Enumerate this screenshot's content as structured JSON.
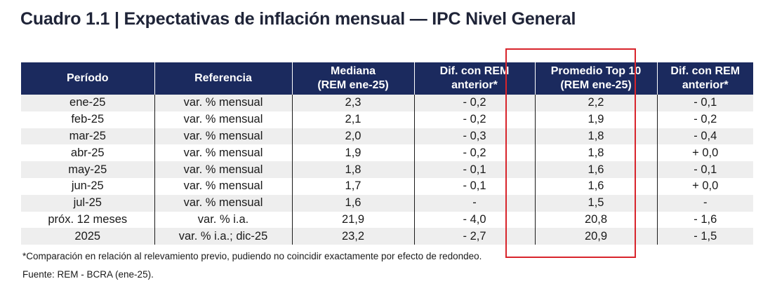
{
  "title": "Cuadro 1.1 | Expectativas de inflación mensual — IPC Nivel General",
  "headers": [
    {
      "line1": "Período",
      "line2": ""
    },
    {
      "line1": "Referencia",
      "line2": ""
    },
    {
      "line1": "Mediana",
      "line2": "(REM ene-25)"
    },
    {
      "line1": "Dif. con REM",
      "line2": "anterior*"
    },
    {
      "line1": "Promedio Top 10",
      "line2": "(REM ene-25)"
    },
    {
      "line1": "Dif. con REM",
      "line2": "anterior*"
    }
  ],
  "rows": [
    {
      "periodo": "ene-25",
      "referencia": "var. % mensual",
      "mediana": "2,3",
      "dif_mediana": "- 0,2",
      "top10": "2,2",
      "dif_top10": "- 0,1"
    },
    {
      "periodo": "feb-25",
      "referencia": "var. % mensual",
      "mediana": "2,1",
      "dif_mediana": "- 0,2",
      "top10": "1,9",
      "dif_top10": "- 0,2"
    },
    {
      "periodo": "mar-25",
      "referencia": "var. % mensual",
      "mediana": "2,0",
      "dif_mediana": "- 0,3",
      "top10": "1,8",
      "dif_top10": "- 0,4"
    },
    {
      "periodo": "abr-25",
      "referencia": "var. % mensual",
      "mediana": "1,9",
      "dif_mediana": "- 0,2",
      "top10": "1,8",
      "dif_top10": "+ 0,0"
    },
    {
      "periodo": "may-25",
      "referencia": "var. % mensual",
      "mediana": "1,8",
      "dif_mediana": "- 0,1",
      "top10": "1,6",
      "dif_top10": "- 0,1"
    },
    {
      "periodo": "jun-25",
      "referencia": "var. % mensual",
      "mediana": "1,7",
      "dif_mediana": "- 0,1",
      "top10": "1,6",
      "dif_top10": "+ 0,0"
    },
    {
      "periodo": "jul-25",
      "referencia": "var. % mensual",
      "mediana": "1,6",
      "dif_mediana": "-",
      "top10": "1,5",
      "dif_top10": "-"
    },
    {
      "periodo": "próx. 12 meses",
      "referencia": "var. % i.a.",
      "mediana": "21,9",
      "dif_mediana": "- 4,0",
      "top10": "20,8",
      "dif_top10": "- 1,6"
    },
    {
      "periodo": "2025",
      "referencia": "var. % i.a.; dic-25",
      "mediana": "23,2",
      "dif_mediana": "- 2,7",
      "top10": "20,9",
      "dif_top10": "- 1,5"
    }
  ],
  "footnote": "*Comparación en relación al relevamiento previo, pudiendo no coincidir exactamente por efecto de redondeo.",
  "source": "Fuente: REM - BCRA (ene-25).",
  "colors": {
    "header_bg": "#1b2a5e",
    "highlight": "#d8242b",
    "row_alt": "#eeeeee"
  }
}
